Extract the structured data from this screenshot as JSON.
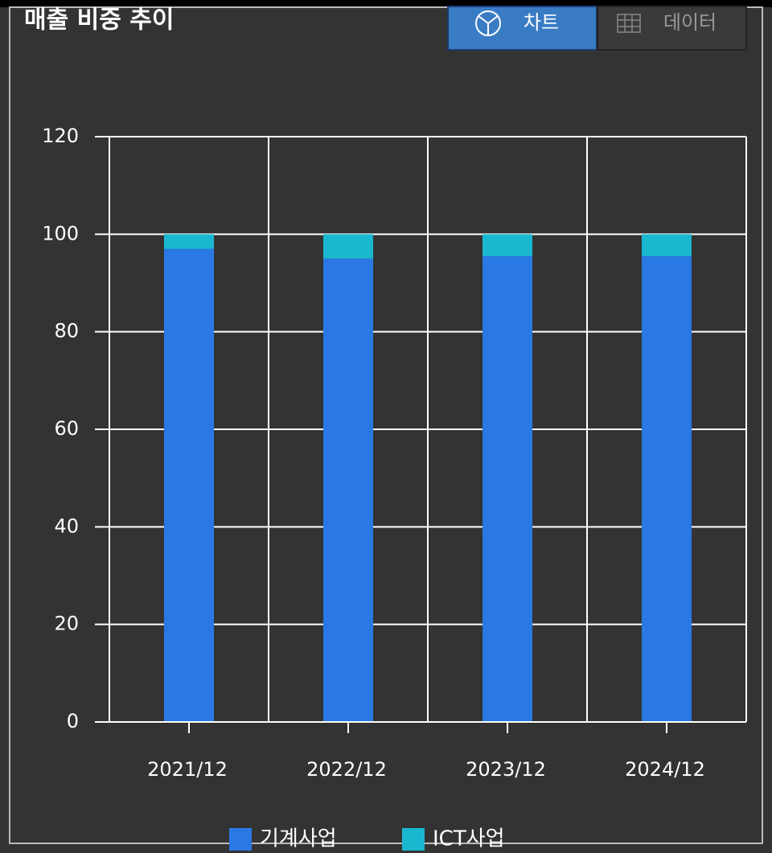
{
  "tabs": [
    "차트",
    "데이터"
  ],
  "chart_data": {
    "type": "bar",
    "stacked": true,
    "title": "매출 비중 추이",
    "categories": [
      "2021/12",
      "2022/12",
      "2023/12",
      "2024/12"
    ],
    "series": [
      {
        "name": "기계사업",
        "color": "#2a78e4",
        "values": [
          97,
          95,
          95.5,
          95.5
        ]
      },
      {
        "name": "ICT사업",
        "color": "#1ab8d0",
        "values": [
          3,
          5,
          4.5,
          4.5
        ]
      }
    ],
    "ylim": [
      0,
      120
    ],
    "yticks": [
      0,
      20,
      40,
      60,
      80,
      100,
      120
    ],
    "grid": true,
    "legend": "bottom"
  }
}
